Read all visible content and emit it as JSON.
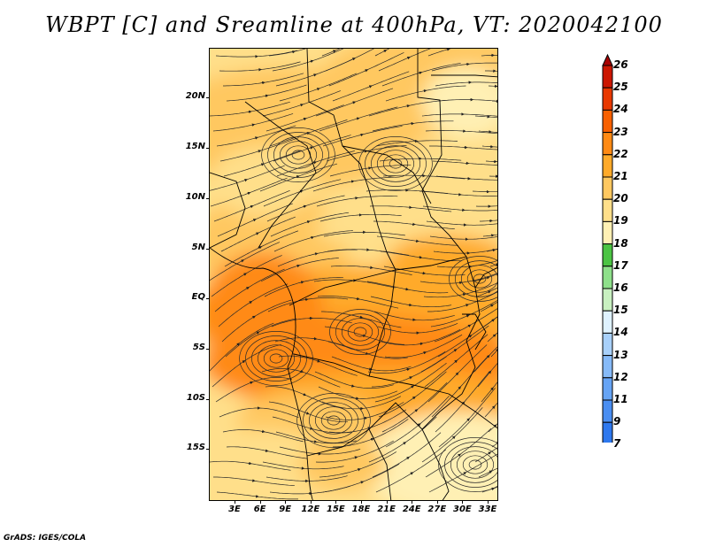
{
  "title": "WBPT [C] and Sreamline at 400hPa, VT: 2020042100",
  "footer": "GrADS: IGES/COLA",
  "map": {
    "lat_labels": [
      "20N",
      "15N",
      "10N",
      "5N",
      "EQ",
      "5S",
      "10S",
      "15S"
    ],
    "lon_labels": [
      "3E",
      "6E",
      "9E",
      "12E",
      "15E",
      "18E",
      "21E",
      "24E",
      "27E",
      "30E",
      "33E"
    ]
  },
  "colorbar": {
    "levels": [
      "7",
      "9",
      "11",
      "12",
      "13",
      "14",
      "15",
      "16",
      "17",
      "18",
      "19",
      "20",
      "21",
      "22",
      "23",
      "24",
      "25",
      "26"
    ],
    "colors": [
      "#1e5ee0",
      "#2e78ee",
      "#4a8ef2",
      "#66a4f5",
      "#86baf8",
      "#a8d0fa",
      "#dff2ff",
      "#c8f0c0",
      "#8ee08a",
      "#4cc444",
      "#fff0b4",
      "#ffdf8a",
      "#ffc860",
      "#ffaa2a",
      "#ff8a14",
      "#f86000",
      "#e83800",
      "#cc1600",
      "#a80000"
    ]
  }
}
